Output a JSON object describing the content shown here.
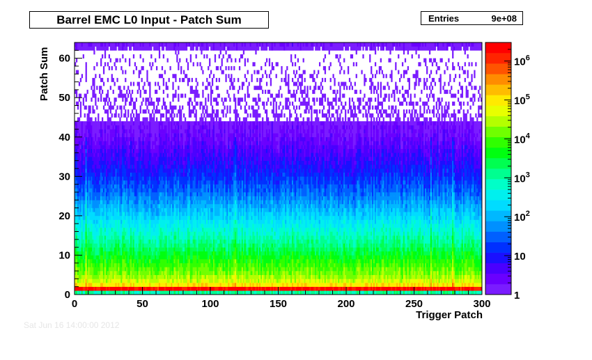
{
  "title": "Barrel EMC L0 Input - Patch Sum",
  "stats": {
    "label": "Entries",
    "value": "9e+08"
  },
  "footer_text": "Sat Jun 16 14:00:00 2012",
  "chart_data": {
    "type": "heatmap",
    "title": "Barrel EMC L0 Input - Patch Sum",
    "xlabel": "Trigger Patch",
    "ylabel": "Patch Sum",
    "xlim": [
      0,
      300
    ],
    "ylim": [
      0,
      64
    ],
    "x_ticks": [
      "0",
      "50",
      "100",
      "150",
      "200",
      "250",
      "300"
    ],
    "y_ticks": [
      "0",
      "10",
      "20",
      "30",
      "40",
      "50",
      "60"
    ],
    "z_scale": "log",
    "zlim": [
      1,
      3000000
    ],
    "z_ticks": [
      "1",
      "10",
      "10^2",
      "10^3",
      "10^4",
      "10^5",
      "10^6"
    ],
    "colorbar_colors": [
      "#7a1cff",
      "#6a00ff",
      "#4a00ff",
      "#1a10ff",
      "#0030ff",
      "#0060ff",
      "#0090ff",
      "#00b8ff",
      "#00dcff",
      "#00f0ee",
      "#00ffc8",
      "#00ff90",
      "#00ff50",
      "#00ff10",
      "#30ff00",
      "#70ff00",
      "#b4ff00",
      "#e8ff00",
      "#ffea00",
      "#ffbc00",
      "#ff8c00",
      "#ff5400",
      "#ff2400",
      "#ff0000"
    ],
    "profile": [
      {
        "y": 0,
        "log10_count": 3.0
      },
      {
        "y": 1,
        "log10_count": 6.3
      },
      {
        "y": 2,
        "log10_count": 5.0
      },
      {
        "y": 3,
        "log10_count": 4.6
      },
      {
        "y": 5,
        "log10_count": 4.2
      },
      {
        "y": 8,
        "log10_count": 3.8
      },
      {
        "y": 12,
        "log10_count": 3.2
      },
      {
        "y": 16,
        "log10_count": 2.7
      },
      {
        "y": 20,
        "log10_count": 2.2
      },
      {
        "y": 25,
        "log10_count": 1.6
      },
      {
        "y": 30,
        "log10_count": 1.1
      },
      {
        "y": 35,
        "log10_count": 0.7
      },
      {
        "y": 40,
        "log10_count": 0.35
      },
      {
        "y": 45,
        "log10_count": 0.1
      },
      {
        "y": 50,
        "log10_count": 0.0
      },
      {
        "y": 62,
        "log10_count": 0.0
      },
      {
        "y": 63,
        "log10_count": 0.2
      }
    ],
    "hot_columns": [
      8,
      118,
      262,
      278
    ],
    "sparse_above_y": 44,
    "grid": false
  }
}
